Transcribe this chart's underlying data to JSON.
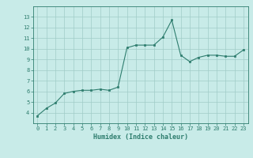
{
  "x": [
    0,
    1,
    2,
    3,
    4,
    5,
    6,
    7,
    8,
    9,
    10,
    11,
    12,
    13,
    14,
    15,
    16,
    17,
    18,
    19,
    20,
    21,
    22,
    23
  ],
  "y": [
    3.7,
    4.4,
    4.9,
    5.8,
    6.0,
    6.1,
    6.1,
    6.2,
    6.1,
    6.4,
    10.1,
    10.35,
    10.35,
    10.35,
    11.1,
    12.7,
    9.4,
    8.8,
    9.2,
    9.4,
    9.4,
    9.3,
    9.3,
    9.9
  ],
  "xlabel": "Humidex (Indice chaleur)",
  "ylim": [
    3,
    14
  ],
  "xlim": [
    -0.5,
    23.5
  ],
  "yticks": [
    4,
    5,
    6,
    7,
    8,
    9,
    10,
    11,
    12,
    13
  ],
  "xticks": [
    0,
    1,
    2,
    3,
    4,
    5,
    6,
    7,
    8,
    9,
    10,
    11,
    12,
    13,
    14,
    15,
    16,
    17,
    18,
    19,
    20,
    21,
    22,
    23
  ],
  "line_color": "#2e7d6e",
  "bg_color": "#c8ebe8",
  "grid_color": "#a0ccc8",
  "label_color": "#2e7d6e"
}
